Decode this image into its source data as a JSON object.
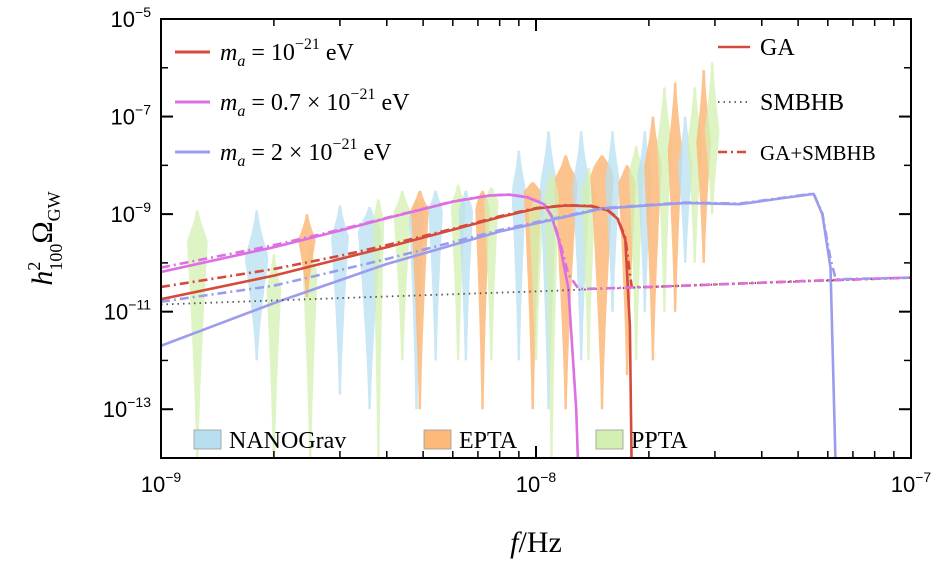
{
  "chart_data": {
    "type": "line",
    "xlabel": "f/Hz",
    "ylabel": "h²₁₀₀Ω_GW",
    "x_scale": "log",
    "y_scale": "log",
    "xlim": [
      1e-09,
      1e-07
    ],
    "ylim": [
      1e-14,
      1e-05
    ],
    "x_ticks": [
      {
        "value": 1e-09,
        "base": "10",
        "exp": "−9"
      },
      {
        "value": 1e-08,
        "base": "10",
        "exp": "−8"
      },
      {
        "value": 1e-07,
        "base": "10",
        "exp": "−7"
      }
    ],
    "y_ticks": [
      {
        "value": 1e-13,
        "base": "10",
        "exp": "−13"
      },
      {
        "value": 1e-11,
        "base": "10",
        "exp": "−11"
      },
      {
        "value": 1e-09,
        "base": "10",
        "exp": "−9"
      },
      {
        "value": 1e-07,
        "base": "10",
        "exp": "−7"
      },
      {
        "value": 1e-05,
        "base": "10",
        "exp": "−5"
      }
    ],
    "grid": false,
    "colors": {
      "red": "#d64a3c",
      "pink": "#dd6fe3",
      "blue": "#9b9cee",
      "smbhb": "#555555",
      "nanograv": "#b7dff0",
      "epta": "#fdb97a",
      "ppta": "#d3f0b2"
    },
    "legend_mass": {
      "placement": "top-left",
      "entries": [
        {
          "color_key": "red",
          "lhs": "m",
          "sub": "a",
          "rhs": " = 10",
          "sup": "−21",
          "unit": " eV"
        },
        {
          "color_key": "pink",
          "lhs": "m",
          "sub": "a",
          "rhs": " = 0.7 × 10",
          "sup": "−21",
          "unit": " eV"
        },
        {
          "color_key": "blue",
          "lhs": "m",
          "sub": "a",
          "rhs": " = 2 × 10",
          "sup": "−21",
          "unit": " eV"
        }
      ]
    },
    "legend_style": {
      "placement": "top-right",
      "entries": [
        {
          "label": "GA",
          "style": "solid"
        },
        {
          "label": "SMBHB",
          "style": "dotted"
        },
        {
          "label": "GA+SMBHB",
          "style": "dashdot"
        }
      ]
    },
    "legend_pta": {
      "placement": "bottom-left",
      "entries": [
        {
          "label": "NANOGrav",
          "color_key": "nanograv"
        },
        {
          "label": "EPTA",
          "color_key": "epta"
        },
        {
          "label": "PPTA",
          "color_key": "ppta"
        }
      ]
    },
    "series": [
      {
        "name": "GA",
        "color_key": "red",
        "style": "solid",
        "x": [
          1e-09,
          2e-09,
          3e-09,
          4e-09,
          6e-09,
          8e-09,
          1e-08,
          1.2e-08,
          1.4e-08,
          1.55e-08,
          1.65e-08,
          1.73e-08,
          1.78e-08,
          1.8e-08
        ],
        "y": [
          1.8e-11,
          5.5e-11,
          1.2e-10,
          2.1e-10,
          4.8e-10,
          8.7e-10,
          1.3e-09,
          1.5e-09,
          1.45e-09,
          1.2e-09,
          8e-10,
          3e-10,
          5e-12,
          5e-15
        ]
      },
      {
        "name": "GA",
        "color_key": "pink",
        "style": "solid",
        "x": [
          1e-09,
          2e-09,
          3e-09,
          4e-09,
          6e-09,
          7.5e-09,
          8.5e-09,
          9.5e-09,
          1.05e-08,
          1.1e-08,
          1.15e-08,
          1.22e-08,
          1.28e-08,
          1.3e-08
        ],
        "y": [
          6.5e-11,
          2.1e-10,
          4.6e-10,
          8.2e-10,
          1.8e-09,
          2.4e-09,
          2.5e-09,
          2.2e-09,
          1.6e-09,
          9e-10,
          3e-10,
          3e-11,
          1e-13,
          3e-15
        ]
      },
      {
        "name": "GA",
        "color_key": "blue",
        "style": "solid",
        "x": [
          1e-09,
          2e-09,
          4e-09,
          8e-09,
          1.5e-08,
          2.5e-08,
          3.5e-08,
          4.5e-08,
          5.5e-08,
          5.8e-08,
          6.1e-08,
          6.3e-08
        ],
        "y": [
          2e-12,
          1.5e-11,
          9.5e-11,
          4.4e-10,
          1.3e-09,
          1.7e-09,
          1.6e-09,
          2.1e-09,
          2.6e-09,
          1e-09,
          8e-11,
          5e-15
        ]
      },
      {
        "name": "SMBHB",
        "color_key": "smbhb",
        "style": "dotted",
        "x": [
          1e-09,
          3e-09,
          1e-08,
          3e-08,
          1e-07
        ],
        "y": [
          1.4e-11,
          1.9e-11,
          2.6e-11,
          3.6e-11,
          5e-11
        ]
      },
      {
        "name": "GA+SMBHB",
        "color_key": "red",
        "style": "dashdot",
        "x": [
          1e-09,
          2e-09,
          3e-09,
          4e-09,
          6e-09,
          8e-09,
          1e-08,
          1.2e-08,
          1.4e-08,
          1.55e-08,
          1.65e-08,
          1.73e-08,
          1.8e-08,
          2e-08,
          3e-08,
          5e-08,
          1e-07
        ],
        "y": [
          3.2e-11,
          7.5e-11,
          1.4e-10,
          2.3e-10,
          5e-10,
          9e-10,
          1.33e-09,
          1.52e-09,
          1.48e-09,
          1.23e-09,
          8.3e-10,
          3.3e-10,
          3.2e-11,
          3.2e-11,
          3.6e-11,
          4.2e-11,
          5e-11
        ]
      },
      {
        "name": "GA+SMBHB",
        "color_key": "pink",
        "style": "dashdot",
        "x": [
          1e-09,
          2e-09,
          3e-09,
          4e-09,
          6e-09,
          7.5e-09,
          8.5e-09,
          9.5e-09,
          1.05e-08,
          1.1e-08,
          1.15e-08,
          1.22e-08,
          1.3e-08,
          2e-08,
          5e-08,
          1e-07
        ],
        "y": [
          8e-11,
          2.3e-10,
          4.8e-10,
          8.4e-10,
          1.82e-09,
          2.42e-09,
          2.52e-09,
          2.22e-09,
          1.63e-09,
          9.3e-10,
          3.3e-10,
          5.8e-11,
          2.9e-11,
          3.2e-11,
          4.2e-11,
          5e-11
        ]
      },
      {
        "name": "GA+SMBHB",
        "color_key": "blue",
        "style": "dashdot",
        "x": [
          1e-09,
          2e-09,
          4e-09,
          8e-09,
          1.5e-08,
          2.5e-08,
          3.5e-08,
          4.5e-08,
          5.5e-08,
          5.8e-08,
          6.1e-08,
          6.3e-08,
          7e-08,
          1e-07
        ],
        "y": [
          1.6e-11,
          3.4e-11,
          1.2e-10,
          4.7e-10,
          1.33e-09,
          1.73e-09,
          1.64e-09,
          2.14e-09,
          2.64e-09,
          1.04e-09,
          1.2e-10,
          4.6e-11,
          4.7e-11,
          5e-11
        ]
      }
    ],
    "violins": [
      {
        "set": "ppta",
        "f": 1.25e-09,
        "y_lo": 1e-14,
        "y_hi": 1.2e-09,
        "y_peak": 3e-10,
        "width": 0.03
      },
      {
        "set": "nanograv",
        "f": 1.8e-09,
        "y_lo": 1e-12,
        "y_hi": 1.2e-09,
        "y_peak": 1.3e-10,
        "width": 0.035
      },
      {
        "set": "ppta",
        "f": 2e-09,
        "y_lo": 1e-14,
        "y_hi": 1.5e-10,
        "y_peak": 3e-11,
        "width": 0.02
      },
      {
        "set": "ppta",
        "f": 2.5e-09,
        "y_lo": 1e-14,
        "y_hi": 2.5e-10,
        "y_peak": 6e-11,
        "width": 0.02
      },
      {
        "set": "epta",
        "f": 2.45e-09,
        "y_lo": 2e-11,
        "y_hi": 1e-09,
        "y_peak": 3e-10,
        "width": 0.025
      },
      {
        "set": "nanograv",
        "f": 3e-09,
        "y_lo": 2e-13,
        "y_hi": 1.5e-09,
        "y_peak": 3.5e-10,
        "width": 0.025
      },
      {
        "set": "nanograv",
        "f": 3.6e-09,
        "y_lo": 1e-13,
        "y_hi": 1.4e-09,
        "y_peak": 5e-10,
        "width": 0.035
      },
      {
        "set": "ppta",
        "f": 3.8e-09,
        "y_lo": 1e-14,
        "y_hi": 2e-09,
        "y_peak": 8e-10,
        "width": 0.015
      },
      {
        "set": "ppta",
        "f": 4.4e-09,
        "y_lo": 1e-12,
        "y_hi": 3e-09,
        "y_peak": 1.1e-09,
        "width": 0.025
      },
      {
        "set": "nanograv",
        "f": 4.8e-09,
        "y_lo": 1e-13,
        "y_hi": 2e-09,
        "y_peak": 9e-10,
        "width": 0.02
      },
      {
        "set": "epta",
        "f": 4.9e-09,
        "y_lo": 1e-13,
        "y_hi": 3e-09,
        "y_peak": 1.3e-09,
        "width": 0.025
      },
      {
        "set": "nanograv",
        "f": 5.4e-09,
        "y_lo": 1e-12,
        "y_hi": 3e-09,
        "y_peak": 1.3e-09,
        "width": 0.02
      },
      {
        "set": "ppta",
        "f": 6.2e-09,
        "y_lo": 1e-12,
        "y_hi": 4e-09,
        "y_peak": 1.6e-09,
        "width": 0.02
      },
      {
        "set": "nanograv",
        "f": 6.5e-09,
        "y_lo": 1e-12,
        "y_hi": 3e-09,
        "y_peak": 1.3e-09,
        "width": 0.02
      },
      {
        "set": "epta",
        "f": 7.2e-09,
        "y_lo": 1e-13,
        "y_hi": 3e-09,
        "y_peak": 1.6e-09,
        "width": 0.02
      },
      {
        "set": "ppta",
        "f": 7.6e-09,
        "y_lo": 1e-12,
        "y_hi": 3.5e-09,
        "y_peak": 2e-09,
        "width": 0.02
      },
      {
        "set": "nanograv",
        "f": 9e-09,
        "y_lo": 1e-12,
        "y_hi": 2e-08,
        "y_peak": 3e-09,
        "width": 0.02
      },
      {
        "set": "epta",
        "f": 9.8e-09,
        "y_lo": 1e-13,
        "y_hi": 4.5e-09,
        "y_peak": 3e-09,
        "width": 0.025
      },
      {
        "set": "ppta",
        "f": 1e-08,
        "y_lo": 1e-12,
        "y_hi": 2e-09,
        "y_peak": 1.2e-09,
        "width": 0.02
      },
      {
        "set": "nanograv",
        "f": 1.08e-08,
        "y_lo": 1e-13,
        "y_hi": 5e-08,
        "y_peak": 4e-09,
        "width": 0.025
      },
      {
        "set": "epta",
        "f": 1.2e-08,
        "y_lo": 1e-13,
        "y_hi": 1.6e-08,
        "y_peak": 5e-09,
        "width": 0.035
      },
      {
        "set": "ppta",
        "f": 1.1e-08,
        "y_lo": 1e-14,
        "y_hi": 7e-09,
        "y_peak": 3e-09,
        "width": 0.02
      },
      {
        "set": "nanograv",
        "f": 1.32e-08,
        "y_lo": 1e-12,
        "y_hi": 5e-08,
        "y_peak": 4e-09,
        "width": 0.025
      },
      {
        "set": "ppta",
        "f": 1.38e-08,
        "y_lo": 1e-12,
        "y_hi": 9e-09,
        "y_peak": 3e-09,
        "width": 0.02
      },
      {
        "set": "epta",
        "f": 1.5e-08,
        "y_lo": 1e-13,
        "y_hi": 1.6e-08,
        "y_peak": 8e-09,
        "width": 0.035
      },
      {
        "set": "nanograv",
        "f": 1.6e-08,
        "y_lo": 1e-11,
        "y_hi": 5e-08,
        "y_peak": 5e-09,
        "width": 0.02
      },
      {
        "set": "epta",
        "f": 1.75e-08,
        "y_lo": 5e-13,
        "y_hi": 1e-08,
        "y_peak": 5e-09,
        "width": 0.025
      },
      {
        "set": "ppta",
        "f": 1.85e-08,
        "y_lo": 1e-12,
        "y_hi": 2.5e-08,
        "y_peak": 8e-09,
        "width": 0.02
      },
      {
        "set": "nanograv",
        "f": 1.95e-08,
        "y_lo": 1e-11,
        "y_hi": 5e-08,
        "y_peak": 6e-09,
        "width": 0.02
      },
      {
        "set": "epta",
        "f": 2.05e-08,
        "y_lo": 1e-12,
        "y_hi": 1e-07,
        "y_peak": 1e-08,
        "width": 0.025
      },
      {
        "set": "ppta",
        "f": 2.2e-08,
        "y_lo": 1e-11,
        "y_hi": 4e-07,
        "y_peak": 3e-08,
        "width": 0.02
      },
      {
        "set": "epta",
        "f": 2.35e-08,
        "y_lo": 1e-11,
        "y_hi": 5e-07,
        "y_peak": 2e-08,
        "width": 0.02
      },
      {
        "set": "nanograv",
        "f": 2.5e-08,
        "y_lo": 1e-10,
        "y_hi": 1e-07,
        "y_peak": 1e-08,
        "width": 0.02
      },
      {
        "set": "ppta",
        "f": 2.65e-08,
        "y_lo": 1e-10,
        "y_hi": 4e-07,
        "y_peak": 3e-08,
        "width": 0.02
      },
      {
        "set": "epta",
        "f": 2.8e-08,
        "y_lo": 1e-10,
        "y_hi": 9e-07,
        "y_peak": 3e-08,
        "width": 0.02
      },
      {
        "set": "ppta",
        "f": 2.95e-08,
        "y_lo": 1e-09,
        "y_hi": 1.3e-06,
        "y_peak": 5e-08,
        "width": 0.02
      }
    ]
  }
}
